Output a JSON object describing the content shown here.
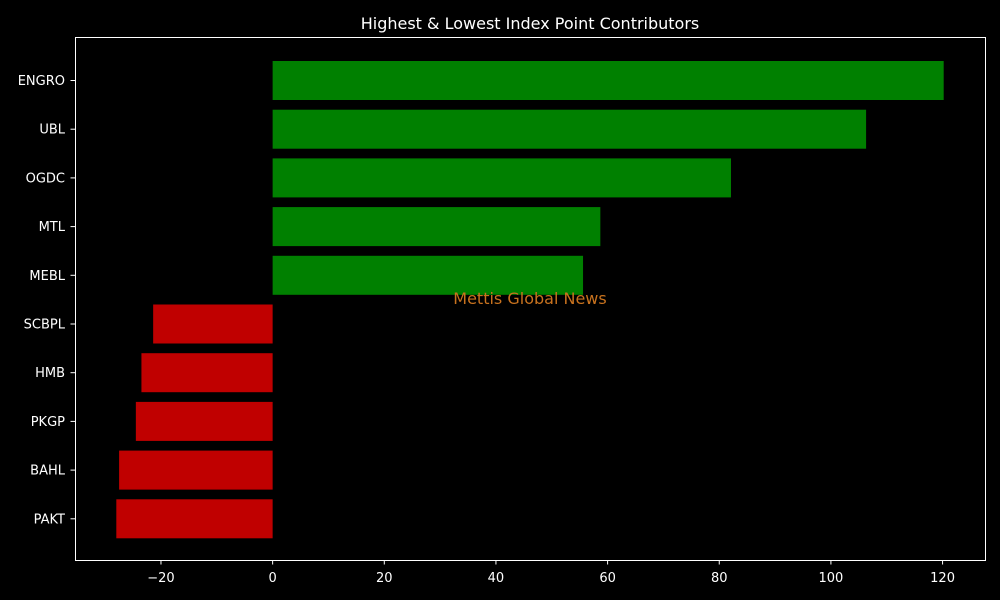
{
  "chart_data": {
    "type": "bar",
    "orientation": "horizontal",
    "title": "Highest & Lowest Index Point Contributors",
    "xlabel": "",
    "ylabel": "",
    "categories": [
      "ENGRO",
      "UBL",
      "OGDC",
      "MTL",
      "MEBL",
      "SCBPL",
      "HMB",
      "PKGP",
      "BAHL",
      "PAKT"
    ],
    "values": [
      120.2,
      106.3,
      82.1,
      58.7,
      55.6,
      -21.4,
      -23.5,
      -24.5,
      -27.5,
      -28.0
    ],
    "xlim": [
      -35.4,
      127.6
    ],
    "xticks": [
      -20,
      0,
      20,
      40,
      60,
      80,
      100,
      120
    ],
    "xtick_labels": [
      "−20",
      "0",
      "20",
      "40",
      "60",
      "80",
      "100",
      "120"
    ],
    "colors": {
      "positive": "#008000",
      "negative": "#c00000",
      "background": "#000000",
      "text": "#ffffff",
      "axis": "#ffffff"
    },
    "grid": false,
    "legend": "none",
    "watermark": "Mettis Global News"
  }
}
